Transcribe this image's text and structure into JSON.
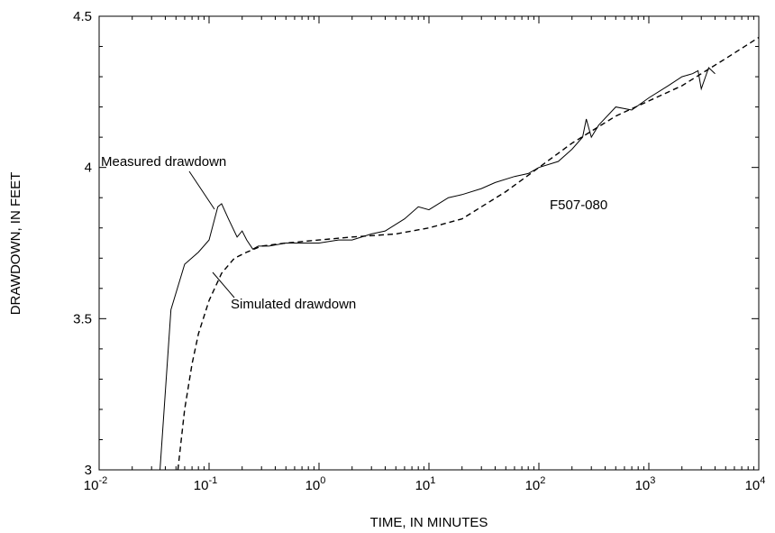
{
  "chart_data": {
    "type": "line",
    "xscale": "log",
    "xlabel": "TIME, IN MINUTES",
    "ylabel": "DRAWDOWN, IN FEET",
    "xlim": [
      0.01,
      10000
    ],
    "ylim": [
      3,
      4.5
    ],
    "grid": false,
    "x_ticks": [
      {
        "base": "10",
        "exp": "-2",
        "value": 0.01
      },
      {
        "base": "10",
        "exp": "-1",
        "value": 0.1
      },
      {
        "base": "10",
        "exp": "0",
        "value": 1
      },
      {
        "base": "10",
        "exp": "1",
        "value": 10
      },
      {
        "base": "10",
        "exp": "2",
        "value": 100
      },
      {
        "base": "10",
        "exp": "3",
        "value": 1000
      },
      {
        "base": "10",
        "exp": "4",
        "value": 10000
      }
    ],
    "y_ticks": [
      {
        "label": "3",
        "value": 3
      },
      {
        "label": "3.5",
        "value": 3.5
      },
      {
        "label": "4",
        "value": 4
      },
      {
        "label": "4.5",
        "value": 4.5
      }
    ],
    "annotations": {
      "measured": "Measured drawdown",
      "simulated": "Simulated drawdown",
      "well": "F507-080"
    },
    "series": [
      {
        "name": "Measured drawdown",
        "style": "solid",
        "x": [
          0.035,
          0.045,
          0.06,
          0.08,
          0.1,
          0.12,
          0.13,
          0.15,
          0.18,
          0.2,
          0.22,
          0.25,
          0.28,
          0.35,
          0.5,
          0.7,
          1,
          1.5,
          2,
          3,
          4,
          6,
          8,
          10,
          15,
          20,
          30,
          40,
          60,
          80,
          100,
          150,
          200,
          250,
          270,
          300,
          350,
          500,
          700,
          1000,
          1500,
          2000,
          2500,
          2800,
          3000,
          3500,
          4000
        ],
        "y": [
          2.95,
          3.53,
          3.68,
          3.72,
          3.76,
          3.87,
          3.88,
          3.83,
          3.77,
          3.79,
          3.76,
          3.73,
          3.74,
          3.74,
          3.75,
          3.75,
          3.75,
          3.76,
          3.76,
          3.78,
          3.79,
          3.83,
          3.87,
          3.86,
          3.9,
          3.91,
          3.93,
          3.95,
          3.97,
          3.98,
          4.0,
          4.02,
          4.06,
          4.1,
          4.16,
          4.1,
          4.14,
          4.2,
          4.19,
          4.23,
          4.27,
          4.3,
          4.31,
          4.32,
          4.26,
          4.33,
          4.31
        ]
      },
      {
        "name": "Simulated drawdown",
        "style": "dashed",
        "x": [
          0.052,
          0.06,
          0.07,
          0.08,
          0.1,
          0.13,
          0.17,
          0.22,
          0.3,
          0.5,
          1,
          2,
          5,
          10,
          20,
          50,
          100,
          200,
          500,
          1000,
          2000,
          5000,
          10000
        ],
        "y": [
          3.0,
          3.2,
          3.35,
          3.45,
          3.56,
          3.65,
          3.7,
          3.72,
          3.74,
          3.75,
          3.76,
          3.77,
          3.78,
          3.8,
          3.83,
          3.92,
          4.0,
          4.08,
          4.17,
          4.22,
          4.27,
          4.36,
          4.43
        ]
      }
    ]
  }
}
